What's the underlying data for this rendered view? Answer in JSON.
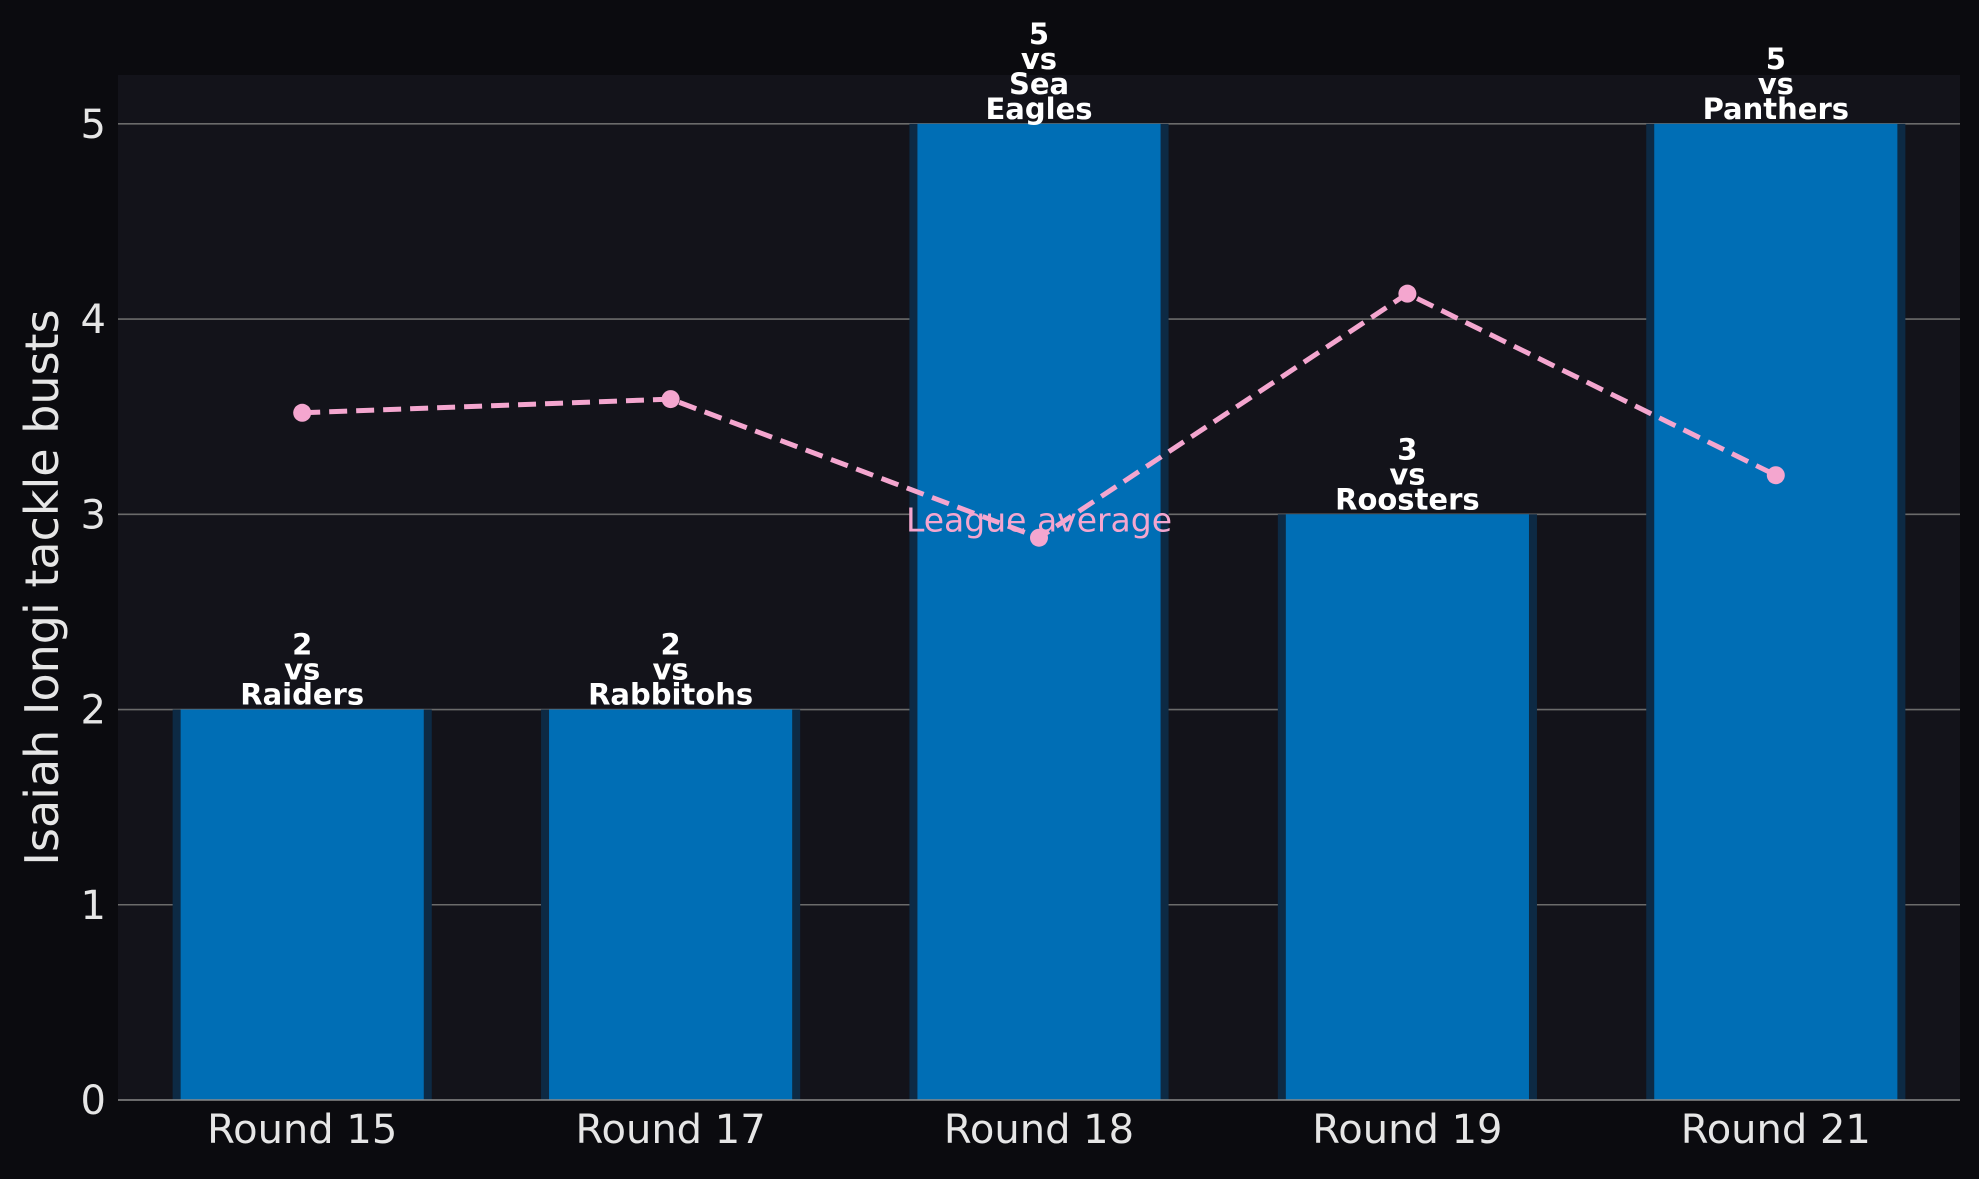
{
  "chart_data": {
    "type": "bar",
    "categories": [
      "Round 15",
      "Round 17",
      "Round 18",
      "Round 19",
      "Round 21"
    ],
    "opponents": [
      "Raiders",
      "Rabbitohs",
      "Sea\nEagles",
      "Roosters",
      "Panthers"
    ],
    "bar_labels": [
      "2\nvs\nRaiders",
      "2\nvs\nRabbitohs",
      "5\nvs\nSea\nEagles",
      "3\nvs\nRoosters",
      "5\nvs\nPanthers"
    ],
    "series": [
      {
        "kind": "bar",
        "values": [
          2,
          2,
          5,
          3,
          5
        ],
        "color": "#006eb5"
      },
      {
        "name": "League average",
        "kind": "line",
        "style": "dashed",
        "values": [
          3.52,
          3.59,
          2.88,
          4.13,
          3.2
        ],
        "color": "#f4a6cf"
      }
    ],
    "ylabel": "Isaiah Iongi tackle busts",
    "xlabel": "",
    "title": "",
    "ylim": [
      0,
      5.25
    ],
    "yticks": [
      0,
      1,
      2,
      3,
      4,
      5
    ],
    "grid": true,
    "colors": {
      "page_background": "#0b0b0f",
      "plot_background": "#13131a",
      "grid": "#6b6b6b",
      "text": "#e6e6e6",
      "bar_shadow": "#0d2a44"
    }
  }
}
